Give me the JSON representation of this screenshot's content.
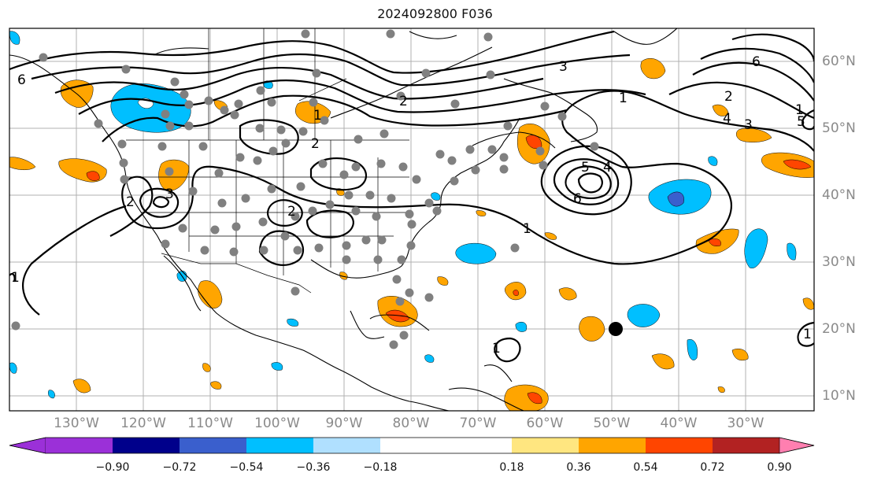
{
  "title": "2024092800 F036",
  "lon_labels": [
    "130°W",
    "120°W",
    "110°W",
    "100°W",
    "90°W",
    "80°W",
    "70°W",
    "60°W",
    "50°W",
    "40°W",
    "30°W"
  ],
  "lat_labels": [
    "60°N",
    "50°N",
    "40°N",
    "30°N",
    "20°N",
    "10°N"
  ],
  "colorbar": {
    "ticks": [
      "−0.90",
      "−0.72",
      "−0.54",
      "−0.36",
      "−0.18",
      "0.18",
      "0.36",
      "0.54",
      "0.72",
      "0.90"
    ],
    "colors": [
      "#9b30d8",
      "#00008b",
      "#3a5fcd",
      "#00bfff",
      "#b0e0ff",
      "#ffffff",
      "#ffe680",
      "#ffa500",
      "#ff4500",
      "#b22222",
      "#ff7fb0"
    ]
  },
  "contour_labels": [
    "6",
    "1",
    "2",
    "1",
    "2",
    "3",
    "2",
    "1",
    "1",
    "3",
    "6",
    "5",
    "4",
    "2",
    "1",
    "4",
    "3",
    "5",
    "2",
    "6",
    "1",
    "1"
  ],
  "colors": {
    "grid": "#b0b0b0",
    "coast": "#000000",
    "station": "#808080",
    "contour": "#000000"
  }
}
